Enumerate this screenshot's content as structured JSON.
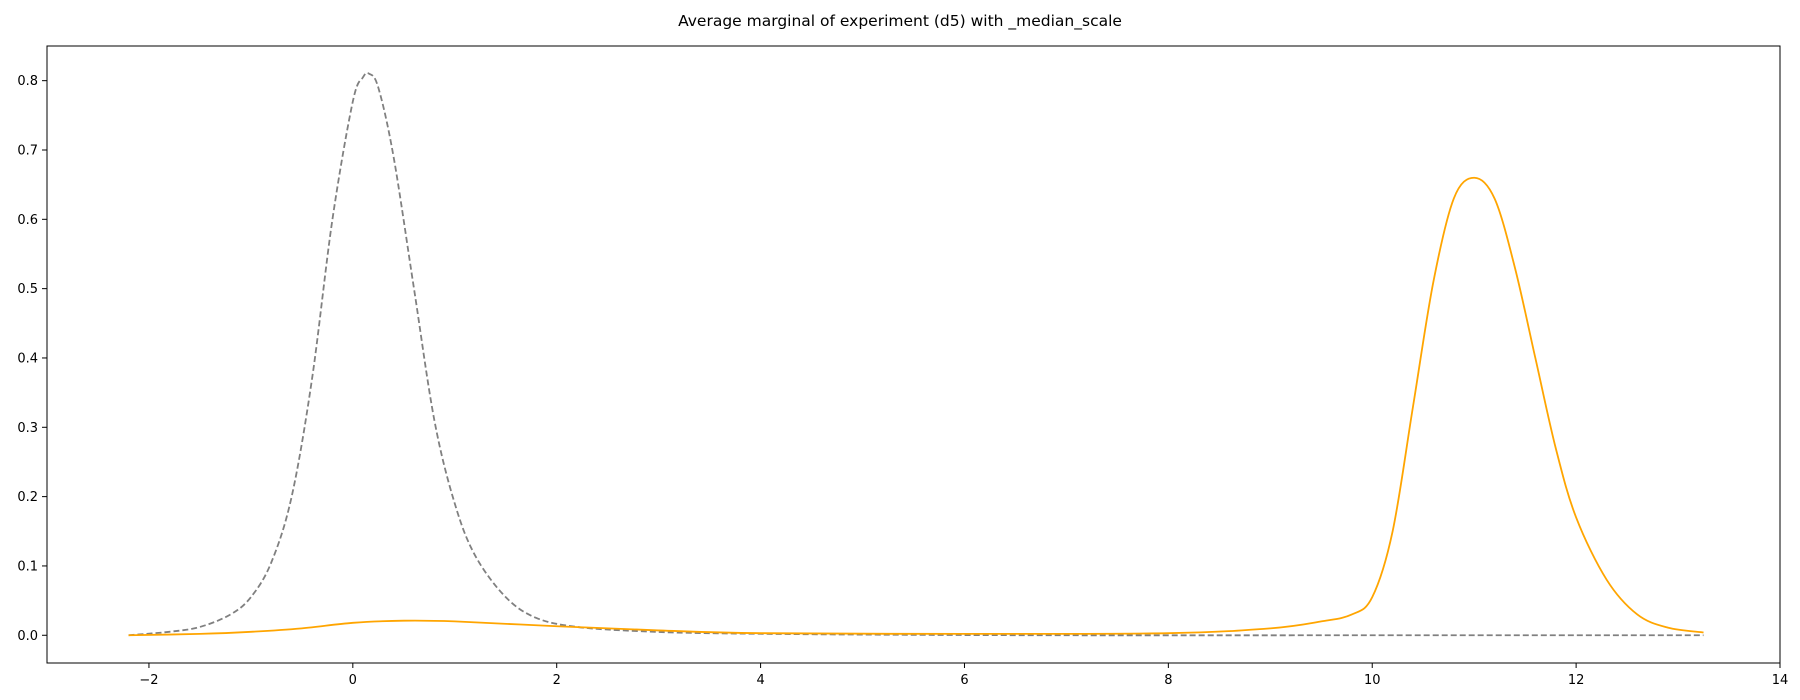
{
  "chart_data": {
    "type": "line",
    "title": "Average marginal of experiment (d5) with _median_scale",
    "xlabel": "",
    "ylabel": "",
    "xlim": [
      -3.0,
      14.0
    ],
    "ylim": [
      -0.04,
      0.85
    ],
    "xticks": [
      -2,
      0,
      2,
      4,
      6,
      8,
      10,
      12,
      14
    ],
    "yticks": [
      0.0,
      0.1,
      0.2,
      0.3,
      0.4,
      0.5,
      0.6,
      0.7,
      0.8
    ],
    "grid": false,
    "series": [
      {
        "style": "dashed",
        "color": "#808080",
        "x": [
          -2.2,
          -1.8,
          -1.5,
          -1.2,
          -1.0,
          -0.8,
          -0.6,
          -0.4,
          -0.2,
          0.0,
          0.1,
          0.16,
          0.25,
          0.4,
          0.6,
          0.8,
          1.0,
          1.2,
          1.5,
          1.8,
          2.2,
          2.8,
          3.5,
          5.0,
          7.0,
          10.0,
          13.25
        ],
        "y": [
          0.0,
          0.005,
          0.012,
          0.03,
          0.055,
          0.105,
          0.2,
          0.37,
          0.6,
          0.77,
          0.805,
          0.81,
          0.79,
          0.69,
          0.5,
          0.31,
          0.19,
          0.115,
          0.055,
          0.025,
          0.012,
          0.006,
          0.003,
          0.001,
          0.0,
          0.0,
          0.0
        ]
      },
      {
        "style": "solid",
        "color": "#ffa500",
        "x": [
          -2.2,
          -1.5,
          -1.0,
          -0.5,
          0.0,
          0.5,
          1.0,
          2.0,
          3.0,
          4.0,
          6.0,
          8.0,
          9.0,
          9.5,
          9.8,
          10.0,
          10.2,
          10.4,
          10.6,
          10.8,
          11.0,
          11.2,
          11.4,
          11.6,
          11.8,
          12.0,
          12.3,
          12.6,
          12.9,
          13.25
        ],
        "y": [
          0.0,
          0.002,
          0.005,
          0.01,
          0.018,
          0.021,
          0.02,
          0.013,
          0.007,
          0.003,
          0.002,
          0.003,
          0.01,
          0.02,
          0.03,
          0.055,
          0.15,
          0.33,
          0.51,
          0.63,
          0.66,
          0.63,
          0.53,
          0.4,
          0.27,
          0.17,
          0.08,
          0.03,
          0.011,
          0.004
        ]
      }
    ]
  }
}
